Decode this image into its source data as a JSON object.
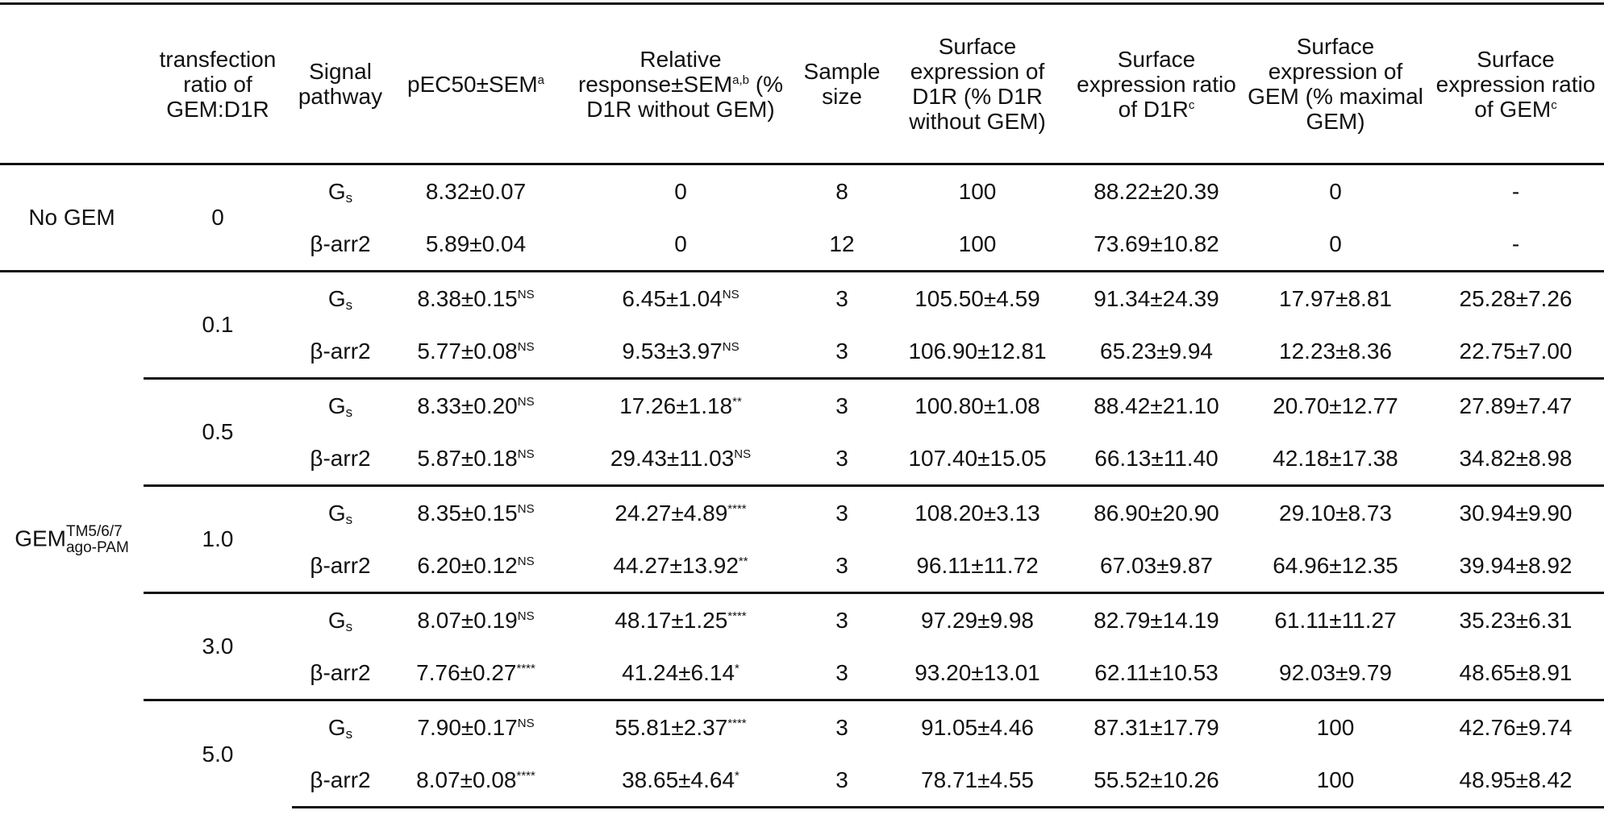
{
  "table": {
    "header": [
      {
        "text": "transfection ratio of GEM:D1R"
      },
      {
        "text": "Signal pathway"
      },
      {
        "text": "pEC50±SEM",
        "sup": "a"
      },
      {
        "text": "Relative response±SEM",
        "sup": "a,b",
        "text2": "(% D1R without GEM)"
      },
      {
        "text": "Sample size"
      },
      {
        "text": "Surface expression of D1R (% D1R without GEM)"
      },
      {
        "text": "Surface expression ratio of D1R",
        "sup": "c"
      },
      {
        "text": "Surface expression of GEM (% maximal GEM)"
      },
      {
        "text": "Surface expression ratio of GEM",
        "sup": "c"
      }
    ],
    "groups": [
      {
        "label": {
          "text": "No GEM"
        },
        "blocks": [
          {
            "ratio": "0",
            "rows": [
              [
                {
                  "text": "G",
                  "sub": "s"
                },
                "8.32±0.07",
                "0",
                "8",
                "100",
                "88.22±20.39",
                "0",
                "-"
              ],
              [
                "β-arr2",
                "5.89±0.04",
                "0",
                "12",
                "100",
                "73.69±10.82",
                "0",
                "-"
              ]
            ]
          }
        ]
      },
      {
        "label": {
          "text": "GEM",
          "sup": "TM5/6/7",
          "sub": "ago-PAM"
        },
        "blocks": [
          {
            "ratio": "0.1",
            "rows": [
              [
                {
                  "text": "G",
                  "sub": "s"
                },
                {
                  "text": "8.38±0.15",
                  "sup": "NS"
                },
                {
                  "text": "6.45±1.04",
                  "sup": "NS"
                },
                "3",
                "105.50±4.59",
                "91.34±24.39",
                "17.97±8.81",
                "25.28±7.26"
              ],
              [
                "β-arr2",
                {
                  "text": "5.77±0.08",
                  "sup": "NS"
                },
                {
                  "text": "9.53±3.97",
                  "sup": "NS"
                },
                "3",
                "106.90±12.81",
                "65.23±9.94",
                "12.23±8.36",
                "22.75±7.00"
              ]
            ]
          },
          {
            "ratio": "0.5",
            "rows": [
              [
                {
                  "text": "G",
                  "sub": "s"
                },
                {
                  "text": "8.33±0.20",
                  "sup": "NS"
                },
                {
                  "text": "17.26±1.18",
                  "sup": "**"
                },
                "3",
                "100.80±1.08",
                "88.42±21.10",
                "20.70±12.77",
                "27.89±7.47"
              ],
              [
                "β-arr2",
                {
                  "text": "5.87±0.18",
                  "sup": "NS"
                },
                {
                  "text": "29.43±11.03",
                  "sup": "NS"
                },
                "3",
                "107.40±15.05",
                "66.13±11.40",
                "42.18±17.38",
                "34.82±8.98"
              ]
            ]
          },
          {
            "ratio": "1.0",
            "rows": [
              [
                {
                  "text": "G",
                  "sub": "s"
                },
                {
                  "text": "8.35±0.15",
                  "sup": "NS"
                },
                {
                  "text": "24.27±4.89",
                  "sup": "****"
                },
                "3",
                "108.20±3.13",
                "86.90±20.90",
                "29.10±8.73",
                "30.94±9.90"
              ],
              [
                "β-arr2",
                {
                  "text": "6.20±0.12",
                  "sup": "NS"
                },
                {
                  "text": "44.27±13.92",
                  "sup": "**"
                },
                "3",
                "96.11±11.72",
                "67.03±9.87",
                "64.96±12.35",
                "39.94±8.92"
              ]
            ]
          },
          {
            "ratio": "3.0",
            "rows": [
              [
                {
                  "text": "G",
                  "sub": "s"
                },
                {
                  "text": "8.07±0.19",
                  "sup": "NS"
                },
                {
                  "text": "48.17±1.25",
                  "sup": "****"
                },
                "3",
                "97.29±9.98",
                "82.79±14.19",
                "61.11±11.27",
                "35.23±6.31"
              ],
              [
                "β-arr2",
                {
                  "text": "7.76±0.27",
                  "sup": "****"
                },
                {
                  "text": "41.24±6.14",
                  "sup": "*"
                },
                "3",
                "93.20±13.01",
                "62.11±10.53",
                "92.03±9.79",
                "48.65±8.91"
              ]
            ]
          },
          {
            "ratio": "5.0",
            "rows": [
              [
                {
                  "text": "G",
                  "sub": "s"
                },
                {
                  "text": "7.90±0.17",
                  "sup": "NS"
                },
                {
                  "text": "55.81±2.37",
                  "sup": "****"
                },
                "3",
                "91.05±4.46",
                "87.31±17.79",
                "100",
                "42.76±9.74"
              ],
              [
                "β-arr2",
                {
                  "text": "8.07±0.08",
                  "sup": "****"
                },
                {
                  "text": "38.65±4.64",
                  "sup": "*"
                },
                "3",
                "78.71±4.55",
                "55.52±10.26",
                "100",
                "48.95±8.42"
              ]
            ]
          }
        ]
      }
    ]
  }
}
